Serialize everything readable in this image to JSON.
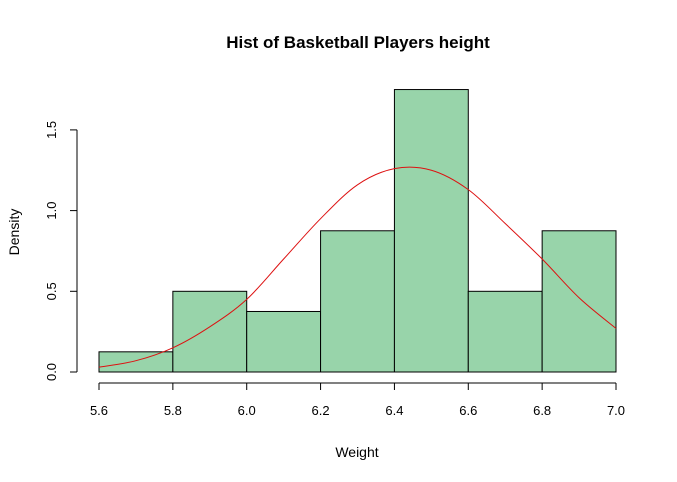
{
  "chart_data": {
    "type": "bar",
    "title": "Hist of Basketball Players height",
    "xlabel": "Weight",
    "ylabel": "Density",
    "bins": [
      {
        "x0": 5.6,
        "x1": 5.8,
        "density": 0.125
      },
      {
        "x0": 5.8,
        "x1": 6.0,
        "density": 0.5
      },
      {
        "x0": 6.0,
        "x1": 6.2,
        "density": 0.375
      },
      {
        "x0": 6.2,
        "x1": 6.4,
        "density": 0.875
      },
      {
        "x0": 6.4,
        "x1": 6.6,
        "density": 1.75
      },
      {
        "x0": 6.6,
        "x1": 6.8,
        "density": 0.5
      },
      {
        "x0": 6.8,
        "x1": 7.0,
        "density": 0.875
      }
    ],
    "density_curve": {
      "x": [
        5.6,
        5.7,
        5.8,
        5.9,
        6.0,
        6.1,
        6.2,
        6.3,
        6.4,
        6.5,
        6.6,
        6.7,
        6.8,
        6.9,
        7.0
      ],
      "y": [
        0.03,
        0.07,
        0.15,
        0.28,
        0.45,
        0.7,
        0.95,
        1.16,
        1.26,
        1.25,
        1.13,
        0.92,
        0.7,
        0.46,
        0.27
      ]
    },
    "xlim": [
      5.6,
      7.0
    ],
    "ylim": [
      0,
      1.75
    ],
    "xticks": [
      "5.6",
      "5.8",
      "6.0",
      "6.2",
      "6.4",
      "6.6",
      "6.8",
      "7.0"
    ],
    "yticks": [
      "0.0",
      "0.5",
      "1.0",
      "1.5"
    ],
    "grid": false,
    "colors": {
      "bar_fill": "#98d4aa",
      "bar_stroke": "#000000",
      "density_line": "#dd1111"
    }
  }
}
